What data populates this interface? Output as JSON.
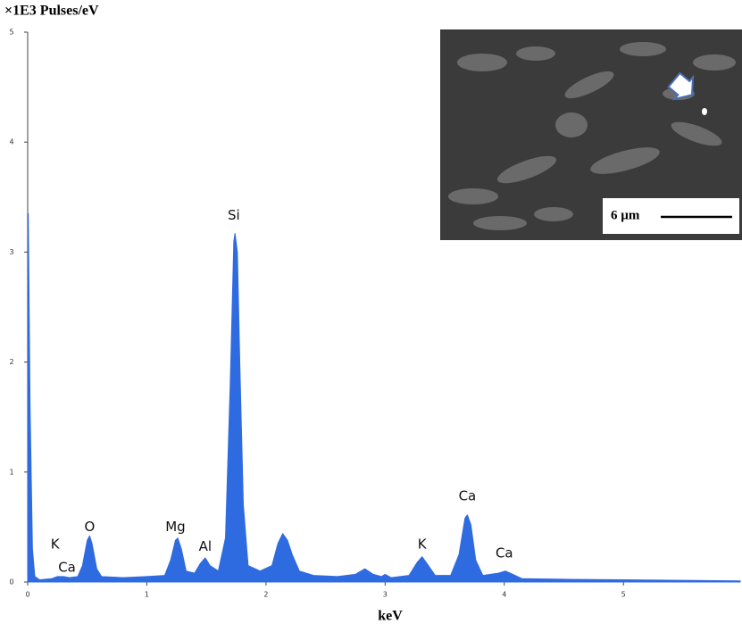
{
  "chart_data": {
    "type": "area",
    "y_label": "×1E3 Pulses/eV",
    "x_label": "keV",
    "xlim": [
      0,
      5.98
    ],
    "ylim": [
      0,
      5
    ],
    "xticks": [
      0,
      1,
      2,
      3,
      4,
      5
    ],
    "yticks": [
      0,
      1,
      2,
      3,
      4,
      5
    ],
    "series": [
      {
        "color": "#2f6be0",
        "x": [
          0,
          0.005,
          0.02,
          0.04,
          0.06,
          0.1,
          0.2,
          0.25,
          0.3,
          0.35,
          0.42,
          0.46,
          0.5,
          0.52,
          0.54,
          0.58,
          0.62,
          0.8,
          1.0,
          1.15,
          1.2,
          1.24,
          1.26,
          1.29,
          1.33,
          1.4,
          1.45,
          1.49,
          1.53,
          1.6,
          1.66,
          1.7,
          1.73,
          1.74,
          1.76,
          1.78,
          1.81,
          1.85,
          1.95,
          2.05,
          2.1,
          2.14,
          2.18,
          2.22,
          2.28,
          2.4,
          2.6,
          2.75,
          2.83,
          2.9,
          2.97,
          3.0,
          3.05,
          3.2,
          3.27,
          3.31,
          3.35,
          3.42,
          3.55,
          3.62,
          3.67,
          3.69,
          3.72,
          3.76,
          3.82,
          3.95,
          4.01,
          4.07,
          4.15,
          4.5,
          5,
          5.5,
          5.98
        ],
        "values": [
          0,
          3.35,
          1.6,
          0.3,
          0.05,
          0.02,
          0.03,
          0.05,
          0.05,
          0.04,
          0.05,
          0.15,
          0.38,
          0.42,
          0.35,
          0.12,
          0.05,
          0.04,
          0.05,
          0.06,
          0.2,
          0.38,
          0.4,
          0.3,
          0.1,
          0.08,
          0.17,
          0.22,
          0.15,
          0.1,
          0.4,
          1.8,
          3.1,
          3.17,
          3.0,
          2.0,
          0.7,
          0.15,
          0.1,
          0.15,
          0.35,
          0.44,
          0.38,
          0.25,
          0.1,
          0.06,
          0.05,
          0.07,
          0.12,
          0.07,
          0.05,
          0.07,
          0.04,
          0.06,
          0.18,
          0.23,
          0.17,
          0.06,
          0.06,
          0.25,
          0.58,
          0.61,
          0.52,
          0.2,
          0.06,
          0.08,
          0.1,
          0.07,
          0.03,
          0.025,
          0.02,
          0.015,
          0.01
        ]
      }
    ],
    "annotations": [
      {
        "text": "K",
        "x": 0.23,
        "y": 0.34
      },
      {
        "text": "Ca",
        "x": 0.33,
        "y": 0.13
      },
      {
        "text": "O",
        "x": 0.52,
        "y": 0.5
      },
      {
        "text": "Mg",
        "x": 1.24,
        "y": 0.5
      },
      {
        "text": "Al",
        "x": 1.49,
        "y": 0.32
      },
      {
        "text": "Si",
        "x": 1.73,
        "y": 3.33
      },
      {
        "text": "K",
        "x": 3.31,
        "y": 0.34
      },
      {
        "text": "Ca",
        "x": 3.69,
        "y": 0.78
      },
      {
        "text": "Ca",
        "x": 4.0,
        "y": 0.26
      }
    ],
    "inset": {
      "scale_bar": "6 µm"
    }
  }
}
